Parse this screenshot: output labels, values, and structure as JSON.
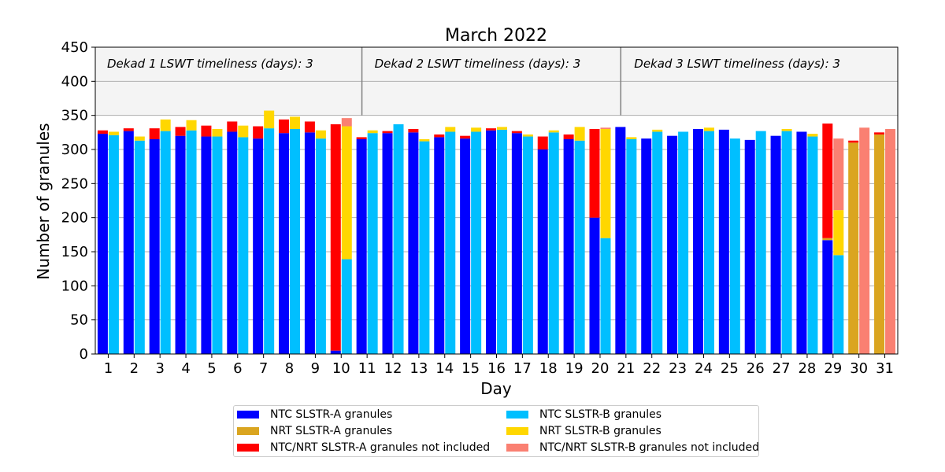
{
  "chart_data": {
    "type": "bar",
    "title": "March 2022",
    "xlabel": "Day",
    "ylabel": "Number of granules",
    "ylim": [
      0,
      450
    ],
    "yticks": [
      0,
      50,
      100,
      150,
      200,
      250,
      300,
      350,
      400,
      450
    ],
    "categories": [
      "1",
      "2",
      "3",
      "4",
      "5",
      "6",
      "7",
      "8",
      "9",
      "10",
      "11",
      "12",
      "13",
      "14",
      "15",
      "16",
      "17",
      "18",
      "19",
      "20",
      "21",
      "22",
      "23",
      "24",
      "25",
      "26",
      "27",
      "28",
      "29",
      "30",
      "31"
    ],
    "grid": "horizontal",
    "shaded_band": [
      350,
      450
    ],
    "annotations": [
      {
        "text": "Dekad 1 LSWT timeliness (days): 3"
      },
      {
        "text": "Dekad 2 LSWT timeliness (days): 3"
      },
      {
        "text": "Dekad 3 LSWT timeliness (days): 3"
      }
    ],
    "dekad_dividers_after_day": [
      10,
      20
    ],
    "legend_position": "below",
    "series": [
      {
        "name": "NTC SLSTR-A granules",
        "color": "#0000ff",
        "bar": "A",
        "values": [
          323,
          327,
          315,
          320,
          319,
          326,
          316,
          324,
          325,
          5,
          315,
          324,
          325,
          318,
          316,
          328,
          324,
          300,
          315,
          200,
          333,
          316,
          320,
          330,
          329,
          314,
          320,
          326,
          167,
          0,
          0
        ]
      },
      {
        "name": "NRT SLSTR-A granules",
        "color": "#daa520",
        "bar": "A",
        "values": [
          0,
          0,
          0,
          0,
          0,
          0,
          0,
          0,
          0,
          0,
          0,
          0,
          0,
          0,
          0,
          0,
          0,
          0,
          0,
          0,
          0,
          0,
          0,
          0,
          0,
          0,
          0,
          0,
          3,
          310,
          322
        ]
      },
      {
        "name": "NTC/NRT SLSTR-A granules not included",
        "color": "#ff0000",
        "bar": "A",
        "values": [
          5,
          4,
          16,
          13,
          16,
          15,
          18,
          20,
          16,
          332,
          3,
          3,
          5,
          4,
          4,
          3,
          3,
          19,
          7,
          130,
          0,
          0,
          0,
          0,
          0,
          0,
          0,
          0,
          168,
          3,
          3
        ]
      },
      {
        "name": "NTC SLSTR-B granules",
        "color": "#00bfff",
        "bar": "B",
        "values": [
          321,
          313,
          327,
          328,
          319,
          318,
          331,
          330,
          316,
          139,
          324,
          337,
          312,
          326,
          326,
          329,
          319,
          325,
          313,
          170,
          315,
          326,
          326,
          327,
          316,
          327,
          327,
          319,
          145,
          0,
          0
        ]
      },
      {
        "name": "NRT SLSTR-B granules",
        "color": "#ffd700",
        "bar": "B",
        "values": [
          5,
          6,
          17,
          15,
          11,
          17,
          26,
          18,
          12,
          195,
          4,
          0,
          3,
          7,
          6,
          4,
          3,
          3,
          20,
          160,
          3,
          3,
          0,
          5,
          0,
          0,
          3,
          4,
          66,
          0,
          0
        ]
      },
      {
        "name": "NTC/NRT SLSTR-B granules not included",
        "color": "#fa8072",
        "bar": "B",
        "values": [
          0,
          0,
          0,
          0,
          0,
          0,
          0,
          0,
          0,
          12,
          0,
          0,
          0,
          0,
          0,
          0,
          0,
          0,
          0,
          2,
          0,
          0,
          0,
          0,
          0,
          0,
          0,
          0,
          105,
          332,
          330
        ]
      }
    ]
  },
  "legend": {
    "items": [
      {
        "label": "NTC SLSTR-A granules",
        "color": "#0000ff"
      },
      {
        "label": "NTC SLSTR-B granules",
        "color": "#00bfff"
      },
      {
        "label": "NRT SLSTR-A granules",
        "color": "#daa520"
      },
      {
        "label": "NRT SLSTR-B granules",
        "color": "#ffd700"
      },
      {
        "label": "NTC/NRT SLSTR-A granules not included",
        "color": "#ff0000"
      },
      {
        "label": "NTC/NRT SLSTR-B granules not included",
        "color": "#fa8072"
      }
    ]
  }
}
